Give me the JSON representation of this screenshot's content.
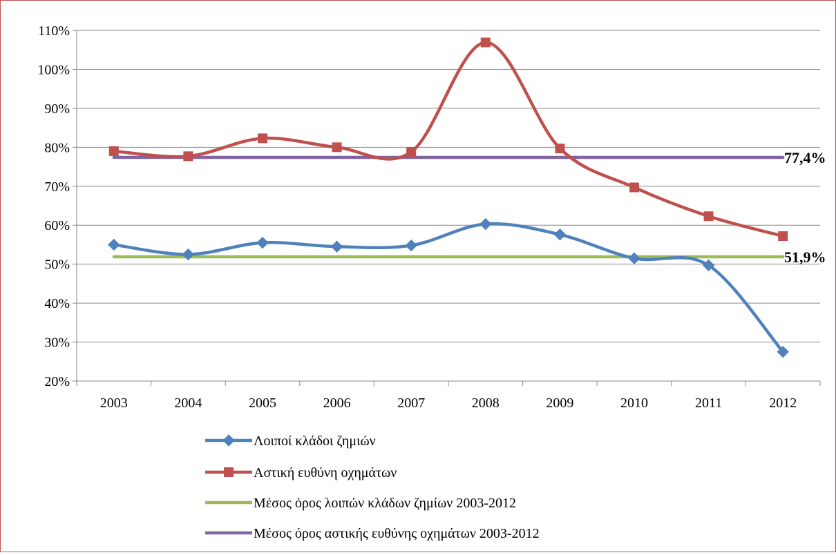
{
  "chart_data": {
    "type": "line",
    "title": "",
    "xlabel": "",
    "ylabel": "",
    "categories": [
      "2003",
      "2004",
      "2005",
      "2006",
      "2007",
      "2008",
      "2009",
      "2010",
      "2011",
      "2012"
    ],
    "ylim": [
      0.2,
      1.1
    ],
    "y_ticks": [
      0.2,
      0.3,
      0.4,
      0.5,
      0.6,
      0.7,
      0.8,
      0.9,
      1.0,
      1.1
    ],
    "y_tick_labels": [
      "20%",
      "30%",
      "40%",
      "50%",
      "60%",
      "70%",
      "80%",
      "90%",
      "100%",
      "110%"
    ],
    "grid": "horizontal",
    "legend_position": "bottom",
    "series": [
      {
        "name": "Λοιποί κλάδοι ζημιών",
        "color": "#4f81bd",
        "marker": "diamond",
        "smooth": true,
        "values": [
          0.55,
          0.525,
          0.555,
          0.545,
          0.548,
          0.603,
          0.576,
          0.515,
          0.497,
          0.275
        ]
      },
      {
        "name": "Αστική ευθύνη οχημάτων",
        "color": "#c0504d",
        "marker": "square",
        "smooth": true,
        "values": [
          0.79,
          0.777,
          0.823,
          0.8,
          0.788,
          1.069,
          0.797,
          0.697,
          0.623,
          0.572
        ]
      },
      {
        "name": "Μέσος όρος λοιπών κλάδων ζημίων 2003-2012",
        "color": "#9bbb59",
        "marker": "none",
        "smooth": false,
        "values": [
          0.519,
          0.519,
          0.519,
          0.519,
          0.519,
          0.519,
          0.519,
          0.519,
          0.519,
          0.519
        ],
        "end_label": "51,9%"
      },
      {
        "name": "Μέσος όρος αστικής ευθύνης οχημάτων 2003-2012",
        "color": "#8064a2",
        "marker": "none",
        "smooth": false,
        "values": [
          0.774,
          0.774,
          0.774,
          0.774,
          0.774,
          0.774,
          0.774,
          0.774,
          0.774,
          0.774
        ],
        "end_label": "77,4%"
      }
    ]
  }
}
